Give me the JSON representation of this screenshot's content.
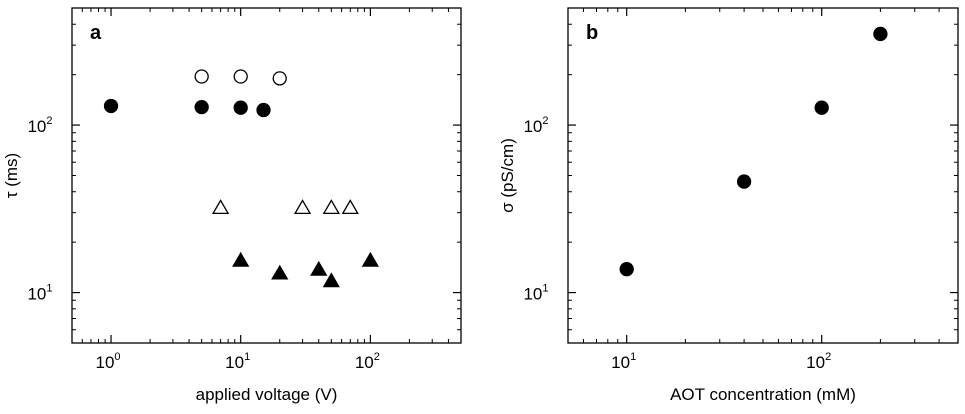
{
  "chart_data": [
    {
      "type": "scatter",
      "panel_label": "a",
      "xlabel": "applied voltage (V)",
      "ylabel": "τ (ms)",
      "xscale": "log",
      "yscale": "log",
      "xlim": [
        0.5,
        500
      ],
      "ylim": [
        5,
        500
      ],
      "xticks": [
        {
          "value": 1,
          "base": "10",
          "exp": "0"
        },
        {
          "value": 10,
          "base": "10",
          "exp": "1"
        },
        {
          "value": 100,
          "base": "10",
          "exp": "2"
        }
      ],
      "yticks": [
        {
          "value": 10,
          "base": "10",
          "exp": "1"
        },
        {
          "value": 100,
          "base": "10",
          "exp": "2"
        }
      ],
      "series": [
        {
          "marker": "circle",
          "filled": false,
          "points": [
            [
              5,
              195
            ],
            [
              10,
              195
            ],
            [
              20,
              190
            ]
          ]
        },
        {
          "marker": "circle",
          "filled": true,
          "points": [
            [
              1,
              130
            ],
            [
              5,
              128
            ],
            [
              10,
              127
            ],
            [
              15,
              123
            ]
          ]
        },
        {
          "marker": "triangle",
          "filled": false,
          "points": [
            [
              7,
              32
            ],
            [
              30,
              32
            ],
            [
              50,
              32
            ],
            [
              70,
              32
            ]
          ]
        },
        {
          "marker": "triangle",
          "filled": true,
          "points": [
            [
              10,
              15.5
            ],
            [
              20,
              13
            ],
            [
              40,
              13.7
            ],
            [
              50,
              11.7
            ],
            [
              100,
              15.5
            ]
          ]
        }
      ]
    },
    {
      "type": "scatter",
      "panel_label": "b",
      "xlabel": "AOT concentration (mM)",
      "ylabel": "σ (pS/cm)",
      "xscale": "log",
      "yscale": "log",
      "xlim": [
        5,
        500
      ],
      "ylim": [
        5,
        500
      ],
      "xticks": [
        {
          "value": 10,
          "base": "10",
          "exp": "1"
        },
        {
          "value": 100,
          "base": "10",
          "exp": "2"
        }
      ],
      "yticks": [
        {
          "value": 10,
          "base": "10",
          "exp": "1"
        },
        {
          "value": 100,
          "base": "10",
          "exp": "2"
        }
      ],
      "series": [
        {
          "marker": "circle",
          "filled": true,
          "points": [
            [
              10,
              13.8
            ],
            [
              40,
              46
            ],
            [
              100,
              127
            ],
            [
              200,
              350
            ]
          ]
        }
      ]
    }
  ]
}
